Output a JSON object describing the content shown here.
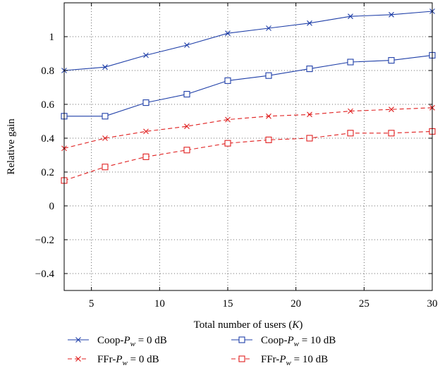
{
  "chart_data": {
    "type": "line",
    "title": "",
    "xlabel": "Total number of users (K)",
    "ylabel": "Relative gain",
    "xlim": [
      3,
      30
    ],
    "ylim": [
      -0.5,
      1.2
    ],
    "xticks": [
      5,
      10,
      15,
      20,
      25,
      30
    ],
    "yticks": [
      -0.4,
      -0.2,
      0,
      0.2,
      0.4,
      0.6,
      0.8,
      1
    ],
    "ytick_labels": [
      "−0.4",
      "−0.2",
      "0",
      "0.2",
      "0.4",
      "0.6",
      "0.8",
      "1"
    ],
    "grid": true,
    "legend_position": "bottom",
    "x": [
      3,
      6,
      9,
      12,
      15,
      18,
      21,
      24,
      27,
      30
    ],
    "series": [
      {
        "name": "Coop-Pw = 0 dB",
        "legend_prefix": "Coop-",
        "legend_suffix": " = 0 dB",
        "color": "#1f3fa8",
        "dash": "solid",
        "marker": "x",
        "values": [
          0.8,
          0.82,
          0.89,
          0.95,
          1.02,
          1.05,
          1.08,
          1.12,
          1.13,
          1.15
        ]
      },
      {
        "name": "Coop-Pw = 10 dB",
        "legend_prefix": "Coop-",
        "legend_suffix": " = 10 dB",
        "color": "#1f3fa8",
        "dash": "solid",
        "marker": "square",
        "values": [
          0.53,
          0.53,
          0.61,
          0.66,
          0.74,
          0.77,
          0.81,
          0.85,
          0.86,
          0.89
        ]
      },
      {
        "name": "FFr-Pw = 0 dB",
        "legend_prefix": "FFr-",
        "legend_suffix": " = 0 dB",
        "color": "#e02020",
        "dash": "dashed",
        "marker": "x",
        "values": [
          0.34,
          0.4,
          0.44,
          0.47,
          0.51,
          0.53,
          0.54,
          0.56,
          0.57,
          0.58
        ]
      },
      {
        "name": "FFr-Pw = 10 dB",
        "legend_prefix": "FFr-",
        "legend_suffix": " = 10 dB",
        "color": "#e02020",
        "dash": "dashed",
        "marker": "square",
        "values": [
          0.15,
          0.23,
          0.29,
          0.33,
          0.37,
          0.39,
          0.4,
          0.43,
          0.43,
          0.44
        ]
      }
    ]
  }
}
